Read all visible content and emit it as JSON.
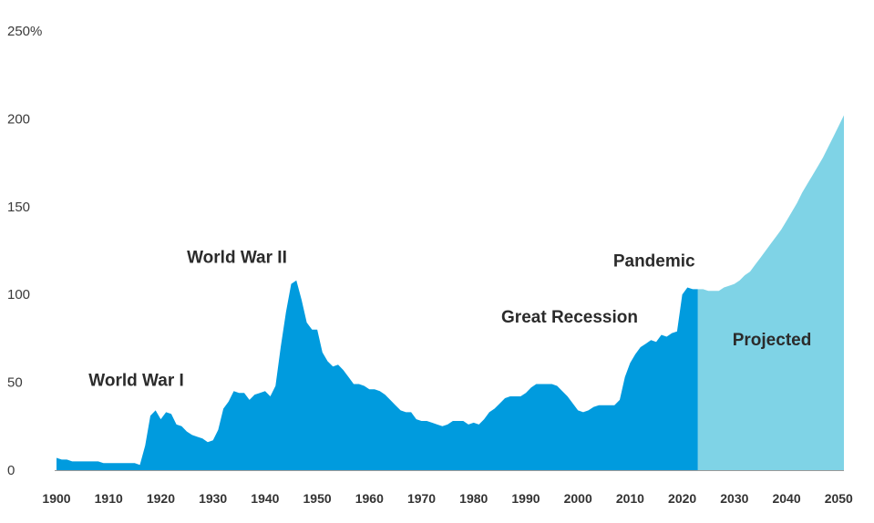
{
  "chart_data": {
    "type": "area",
    "title": "",
    "xlabel": "",
    "ylabel": "",
    "xlim": [
      1900,
      2051
    ],
    "ylim": [
      0,
      250
    ],
    "y_ticks": [
      "250%",
      "200",
      "150",
      "100",
      "50",
      "0"
    ],
    "x_ticks": [
      "1900",
      "1910",
      "1920",
      "1930",
      "1940",
      "1950",
      "1960",
      "1970",
      "1980",
      "1990",
      "2000",
      "2010",
      "2020",
      "2030",
      "2040",
      "2050"
    ],
    "grid": false,
    "series": [
      {
        "color": "#009bde",
        "points": [
          [
            1900,
            7
          ],
          [
            1901,
            6
          ],
          [
            1902,
            6
          ],
          [
            1903,
            5
          ],
          [
            1905,
            5
          ],
          [
            1907,
            5
          ],
          [
            1908,
            5
          ],
          [
            1909,
            4
          ],
          [
            1912,
            4
          ],
          [
            1914,
            4
          ],
          [
            1915,
            4
          ],
          [
            1916,
            3
          ],
          [
            1917,
            14
          ],
          [
            1918,
            31
          ],
          [
            1919,
            34
          ],
          [
            1920,
            29
          ],
          [
            1921,
            33
          ],
          [
            1922,
            32
          ],
          [
            1923,
            26
          ],
          [
            1924,
            25
          ],
          [
            1925,
            22
          ],
          [
            1926,
            20
          ],
          [
            1927,
            19
          ],
          [
            1928,
            18
          ],
          [
            1929,
            16
          ],
          [
            1930,
            17
          ],
          [
            1931,
            23
          ],
          [
            1932,
            35
          ],
          [
            1933,
            39
          ],
          [
            1934,
            45
          ],
          [
            1935,
            44
          ],
          [
            1936,
            44
          ],
          [
            1937,
            40
          ],
          [
            1938,
            43
          ],
          [
            1939,
            44
          ],
          [
            1940,
            45
          ],
          [
            1941,
            42
          ],
          [
            1942,
            48
          ],
          [
            1943,
            70
          ],
          [
            1944,
            90
          ],
          [
            1945,
            106
          ],
          [
            1946,
            108
          ],
          [
            1947,
            97
          ],
          [
            1948,
            84
          ],
          [
            1949,
            80
          ],
          [
            1950,
            80
          ],
          [
            1951,
            67
          ],
          [
            1952,
            62
          ],
          [
            1953,
            59
          ],
          [
            1954,
            60
          ],
          [
            1955,
            57
          ],
          [
            1956,
            53
          ],
          [
            1957,
            49
          ],
          [
            1958,
            49
          ],
          [
            1959,
            48
          ],
          [
            1960,
            46
          ],
          [
            1961,
            46
          ],
          [
            1962,
            45
          ],
          [
            1963,
            43
          ],
          [
            1964,
            40
          ],
          [
            1965,
            37
          ],
          [
            1966,
            34
          ],
          [
            1967,
            33
          ],
          [
            1968,
            33
          ],
          [
            1969,
            29
          ],
          [
            1970,
            28
          ],
          [
            1971,
            28
          ],
          [
            1972,
            27
          ],
          [
            1973,
            26
          ],
          [
            1974,
            25
          ],
          [
            1975,
            26
          ],
          [
            1976,
            28
          ],
          [
            1977,
            28
          ],
          [
            1978,
            28
          ],
          [
            1979,
            26
          ],
          [
            1980,
            27
          ],
          [
            1981,
            26
          ],
          [
            1982,
            29
          ],
          [
            1983,
            33
          ],
          [
            1984,
            35
          ],
          [
            1985,
            38
          ],
          [
            1986,
            41
          ],
          [
            1987,
            42
          ],
          [
            1988,
            42
          ],
          [
            1989,
            42
          ],
          [
            1990,
            44
          ],
          [
            1991,
            47
          ],
          [
            1992,
            49
          ],
          [
            1993,
            49
          ],
          [
            1994,
            49
          ],
          [
            1995,
            49
          ],
          [
            1996,
            48
          ],
          [
            1997,
            45
          ],
          [
            1998,
            42
          ],
          [
            1999,
            38
          ],
          [
            2000,
            34
          ],
          [
            2001,
            33
          ],
          [
            2002,
            34
          ],
          [
            2003,
            36
          ],
          [
            2004,
            37
          ],
          [
            2005,
            37
          ],
          [
            2006,
            37
          ],
          [
            2007,
            37
          ],
          [
            2008,
            40
          ],
          [
            2009,
            53
          ],
          [
            2010,
            61
          ],
          [
            2011,
            66
          ],
          [
            2012,
            70
          ],
          [
            2013,
            72
          ],
          [
            2014,
            74
          ],
          [
            2015,
            73
          ],
          [
            2016,
            77
          ],
          [
            2017,
            76
          ],
          [
            2018,
            78
          ],
          [
            2019,
            79
          ],
          [
            2020,
            100
          ],
          [
            2021,
            104
          ],
          [
            2022,
            103
          ],
          [
            2023,
            103
          ]
        ]
      },
      {
        "color": "#7fd3e6",
        "points": [
          [
            2023,
            103
          ],
          [
            2024,
            103
          ],
          [
            2025,
            102
          ],
          [
            2026,
            102
          ],
          [
            2027,
            102
          ],
          [
            2028,
            104
          ],
          [
            2029,
            105
          ],
          [
            2030,
            106
          ],
          [
            2031,
            108
          ],
          [
            2032,
            111
          ],
          [
            2033,
            113
          ],
          [
            2034,
            117
          ],
          [
            2035,
            121
          ],
          [
            2036,
            125
          ],
          [
            2037,
            129
          ],
          [
            2038,
            133
          ],
          [
            2039,
            137
          ],
          [
            2040,
            142
          ],
          [
            2041,
            147
          ],
          [
            2042,
            152
          ],
          [
            2043,
            158
          ],
          [
            2044,
            163
          ],
          [
            2045,
            168
          ],
          [
            2046,
            173
          ],
          [
            2047,
            178
          ],
          [
            2048,
            184
          ],
          [
            2049,
            190
          ],
          [
            2050,
            196
          ],
          [
            2051,
            202
          ]
        ]
      }
    ],
    "annotations": [
      {
        "text": "World War I",
        "x": 1915.3,
        "y": 48
      },
      {
        "text": "World War II",
        "x": 1934.6,
        "y": 118
      },
      {
        "text": "Great Recession",
        "x": 1998.4,
        "y": 84
      },
      {
        "text": "Pandemic",
        "x": 2014.6,
        "y": 116
      },
      {
        "text": "Projected",
        "x": 2037.2,
        "y": 71
      }
    ]
  }
}
